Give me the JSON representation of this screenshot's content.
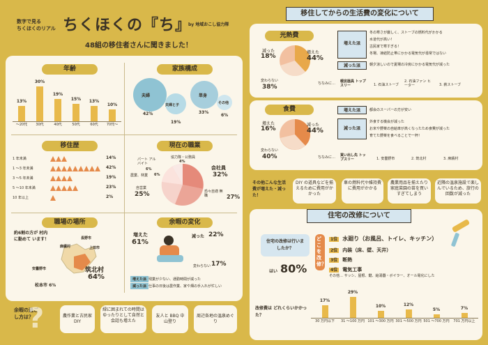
{
  "header": {
    "subtitle_line1": "数字で見る",
    "subtitle_line2": "ちくほくのリアル",
    "title": "ちくほくの『ち』",
    "by": "by 地域おこし協力隊",
    "tagline": "48組の移住者さんに聞きました！"
  },
  "age": {
    "title": "年齢",
    "chart_data": {
      "type": "bar",
      "categories": [
        "～20代",
        "30代",
        "40代",
        "50代",
        "60代",
        "70代～"
      ],
      "values": [
        13,
        30,
        19,
        15,
        13,
        10
      ],
      "value_labels": [
        "13%",
        "30%",
        "19%",
        "15%",
        "13%",
        "10%"
      ]
    }
  },
  "family": {
    "title": "家族構成",
    "items": [
      {
        "label": "夫婦",
        "value": "42%"
      },
      {
        "label": "夫婦と子",
        "value": "19%"
      },
      {
        "label": "単身",
        "value": "33%"
      },
      {
        "label": "その他",
        "value": "6%"
      }
    ]
  },
  "history": {
    "title": "移住歴",
    "rows": [
      {
        "label": "1 年未満",
        "value": "14%"
      },
      {
        "label": "1 ～3 年未満",
        "value": "42%"
      },
      {
        "label": "3 ～5 年未満",
        "value": "19%"
      },
      {
        "label": "5 ～10 年未満",
        "value": "23%"
      },
      {
        "label": "10 年以上",
        "value": "2%"
      }
    ]
  },
  "job": {
    "title": "現在の職業",
    "labels": [
      {
        "label": "協力隊・公務員",
        "value": "4%"
      },
      {
        "label": "パート アルバイト",
        "value": "6%"
      },
      {
        "label": "農業、林業",
        "value": "6%"
      },
      {
        "label": "会社員",
        "value": "32%"
      },
      {
        "label": "自営業",
        "value": "25%"
      },
      {
        "label": "恐々自適 無職",
        "value": "27%"
      }
    ]
  },
  "workplace": {
    "title": "職場の場所",
    "note": "約6割の方が 村内に勤めて います！",
    "places": [
      "長野市",
      "麻績村",
      "上田市",
      "安曇野市",
      "松本市",
      "筑北村"
    ],
    "matsumoto_value": "6%",
    "main_place": "筑北村",
    "main_value": "64%"
  },
  "free_time": {
    "title": "余暇の変化",
    "increased_label": "増えた",
    "increased_value": "61%",
    "decreased_label": "減った",
    "decreased_value": "22%",
    "unchanged_label": "変わらない",
    "unchanged_value": "17%",
    "tag_inc": "増えた派",
    "tag_dec": "減った派",
    "note_inc": "残業が少ない、通勤時間が減った",
    "note_dec": "仕事の日後は農作業、家や畑の手入れが忙しい"
  },
  "bottom_left": {
    "question": "余暇の過ごし方は？",
    "items": [
      "農作業と古民家 DIY",
      "緑に囲まれての時間はゆったりとして自然と会話も増えた",
      "友人と BBQ 中山登り",
      "周辺各地の温泉めぐり"
    ]
  },
  "living_cost": {
    "title": "移住してからの生活費の変化について",
    "light": {
      "label": "光熱費",
      "decreased": "減った",
      "decreased_value": "18%",
      "increased": "増えた",
      "increased_value": "44%",
      "unchanged": "変わらない",
      "unchanged_value": "38%",
      "tag_inc": "増えた派",
      "inc_reasons": [
        "冬の寒さが厳しく、ストーブの燃料代がかかる",
        "水道代が高い！",
        "古民家で寒すぎる！",
        "冬場、凍結防止帯にかかる電気代が尋常ではない"
      ],
      "tag_dec": "減った派",
      "dec_reasons": [
        "朝夕涼しいので夏場の冷房にかかる電気代が減った"
      ],
      "aside": "ちなみに…",
      "top_title": "暖房器具 トップスリー",
      "top": [
        "1. 石油ストーブ",
        "2. 石油ファン ヒーター",
        "3. 薪ストーブ"
      ]
    },
    "food": {
      "label": "食費",
      "decreased": "減った",
      "decreased_value": "16%",
      "increased": "増えた",
      "increased_value": "44%",
      "unchanged": "変わらない",
      "unchanged_value": "40%",
      "tag_inc": "増えた派",
      "inc_reasons": [
        "都会のスーパーの方が安い"
      ],
      "tag_dec": "減った派",
      "dec_reasons": [
        "外食する機会が減った",
        "お米や野菜の自給率が高くなったため食費が減った",
        "育てた野菜を食べることで一杯！"
      ],
      "aside": "ちなみに…",
      "top_title": "買い出し先 トップスリー",
      "top": [
        "1. 安曇野市",
        "2. 筑北村",
        "3. 麻績村"
      ]
    }
  },
  "other_costs": {
    "question": "その他こんな生活費が増えた・減った！",
    "items": [
      "DIY の道具などを揃えるために費用がかかった",
      "車の燃料代や維持費に費用がかかる",
      "農業用品を揃えたり家庭菜園の苗を買いすぎてしまう",
      "近隣の温泉施設で楽しんでいるため、旅行の回数が減った"
    ]
  },
  "renovation": {
    "title": "住宅の改修について",
    "q1": "住宅の改修は行いましたか？",
    "yes_label": "はい",
    "yes_value": "80%",
    "where_label": "どこを改修？",
    "ranks": [
      {
        "rank": "1位",
        "text": "水廻り（お風呂、トイレ、キッチン）"
      },
      {
        "rank": "2位",
        "text": "内装（床、壁、天井）"
      },
      {
        "rank": "3位",
        "text": "断熱"
      },
      {
        "rank": "4位",
        "text": "電気工事"
      }
    ],
    "others": "その他… サッシ、屋根、鍵、給湯器・ボイラー、オール電化にした",
    "q2": "改修費は どれくらいかかった？",
    "chart_data": {
      "type": "bar",
      "categories": [
        "30 万円以下",
        "31 ～100 万円",
        "101 ～300 万円",
        "301 ～500 万円",
        "501 ～700 万円",
        "701 万円以上"
      ],
      "values": [
        17,
        29,
        10,
        12,
        5,
        7
      ],
      "value_labels": [
        "17%",
        "29%",
        "10%",
        "12%",
        "5%",
        "7%"
      ]
    }
  }
}
